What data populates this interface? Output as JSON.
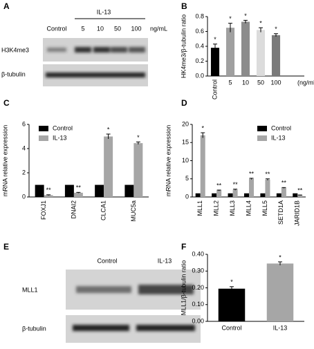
{
  "panels": {
    "a": {
      "label": "A",
      "treatment": "IL-13",
      "lanes": [
        "Control",
        "5",
        "10",
        "50",
        "100"
      ],
      "unit": "ng/mL",
      "rows": [
        "H3K4me3",
        "β-tubulin"
      ]
    },
    "e": {
      "label": "E",
      "lanes": [
        "Control",
        "IL-13"
      ],
      "rows": [
        "MLL1",
        "β-tubulin"
      ]
    }
  },
  "chart_data": [
    {
      "type": "bar",
      "label": "B",
      "ylabel": "HK4me3/β-tubulin ratio",
      "xlabel": "(ng/mL)",
      "categories": [
        "Control",
        "5",
        "10",
        "50",
        "100"
      ],
      "values": [
        0.38,
        0.65,
        0.73,
        0.62,
        0.55
      ],
      "errors": [
        0.05,
        0.06,
        0.02,
        0.03,
        0.02
      ],
      "colors": [
        "#000000",
        "#a0a0a0",
        "#8c8c8c",
        "#dcdcdc",
        "#7a7a7a"
      ],
      "significance": [
        "*",
        "*",
        "*",
        "*",
        "*"
      ],
      "ylim": [
        0,
        0.8
      ],
      "yticks": [
        {
          "value": 0,
          "label": "0.0"
        },
        0.2,
        0.4,
        0.6,
        0.8
      ]
    },
    {
      "type": "bar",
      "label": "C",
      "ylabel": "mRNA relative expression",
      "legend": "upper left",
      "categories": [
        "FOXJ1",
        "DNAI2",
        "CLCA1",
        "MUC5a"
      ],
      "series": [
        {
          "name": "Control",
          "color": "#000000",
          "values": [
            1,
            1,
            1,
            1
          ]
        },
        {
          "name": "IL-13",
          "color": "#a6a6a6",
          "values": [
            0.15,
            0.35,
            5.0,
            4.45
          ],
          "errors": [
            0.03,
            0.03,
            0.2,
            0.1
          ],
          "significance": [
            "**",
            "**",
            "*",
            "*"
          ]
        }
      ],
      "ylim": [
        0,
        6
      ],
      "yticks": [
        0,
        2,
        4,
        6
      ]
    },
    {
      "type": "bar",
      "label": "D",
      "ylabel": "mRNA relative expression",
      "legend": "upper right",
      "categories": [
        "MLL1",
        "MLL2",
        "MLL3",
        "MLL4",
        "MLL5",
        "SETD1A",
        "JARID1B"
      ],
      "series": [
        {
          "name": "Control",
          "color": "#000000",
          "values": [
            1,
            1,
            1,
            1,
            1,
            1,
            1
          ]
        },
        {
          "name": "IL-13",
          "color": "#a6a6a6",
          "values": [
            17,
            1.8,
            2,
            5,
            4.8,
            2.5,
            0.5
          ],
          "errors": [
            0.7,
            0.1,
            0.15,
            0.15,
            0.2,
            0.1,
            0.05
          ],
          "significance": [
            "*",
            "**",
            "**",
            "**",
            "**",
            "**",
            "**"
          ]
        }
      ],
      "ylim": [
        0,
        20
      ],
      "yticks": [
        0,
        5,
        10,
        15,
        20
      ]
    },
    {
      "type": "bar",
      "label": "F",
      "ylabel": "MLL1/β-tubulin ratio",
      "categories": [
        "Control",
        "IL-13"
      ],
      "values": [
        0.195,
        0.345
      ],
      "errors": [
        0.012,
        0.01
      ],
      "colors": [
        "#000000",
        "#a6a6a6"
      ],
      "significance": [
        "*",
        "*"
      ],
      "ylim": [
        0,
        0.4
      ],
      "yticks": [
        {
          "value": 0,
          "label": "0.00"
        },
        {
          "value": 0.1,
          "label": "0.10"
        },
        {
          "value": 0.2,
          "label": "0.20"
        },
        {
          "value": 0.3,
          "label": "0.30"
        },
        {
          "value": 0.4,
          "label": "0.40"
        }
      ]
    }
  ]
}
